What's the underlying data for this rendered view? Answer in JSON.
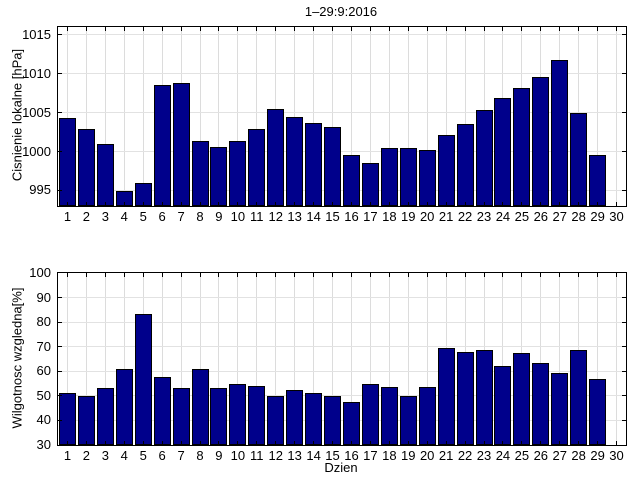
{
  "figure_title": "1–29:9:2016",
  "colors": {
    "bar": "#00008B",
    "bar_edge": "#000000",
    "grid": "#dcdcdc",
    "axis": "#000000",
    "background": "#ffffff"
  },
  "chart_data": [
    {
      "type": "bar",
      "title": "1–29:9:2016",
      "xlabel": "",
      "ylabel": "Cisnienie lokalne [hPa]",
      "categories": [
        1,
        2,
        3,
        4,
        5,
        6,
        7,
        8,
        9,
        10,
        11,
        12,
        13,
        14,
        15,
        16,
        17,
        18,
        19,
        20,
        21,
        22,
        23,
        24,
        25,
        26,
        27,
        28,
        29
      ],
      "values": [
        1004.3,
        1002.9,
        1001.0,
        994.9,
        995.9,
        1008.6,
        1008.8,
        1001.4,
        1000.6,
        1001.4,
        1002.9,
        1005.4,
        1004.4,
        1003.7,
        1003.1,
        999.6,
        998.5,
        1000.5,
        1000.4,
        1000.2,
        1002.1,
        1003.5,
        1005.3,
        1006.9,
        1008.2,
        1009.6,
        1011.7,
        1005.0,
        999.5
      ],
      "ylim": [
        993,
        1016
      ],
      "yticks": [
        995,
        1000,
        1005,
        1010,
        1015
      ],
      "xlim": [
        0.5,
        30.5
      ],
      "xticks": [
        1,
        2,
        3,
        4,
        5,
        6,
        7,
        8,
        9,
        10,
        11,
        12,
        13,
        14,
        15,
        16,
        17,
        18,
        19,
        20,
        21,
        22,
        23,
        24,
        25,
        26,
        27,
        28,
        29,
        30
      ],
      "grid": true,
      "legend": null
    },
    {
      "type": "bar",
      "title": "",
      "xlabel": "Dzien",
      "ylabel": "Wilgotnosc wzgledna[%]",
      "categories": [
        1,
        2,
        3,
        4,
        5,
        6,
        7,
        8,
        9,
        10,
        11,
        12,
        13,
        14,
        15,
        16,
        17,
        18,
        19,
        20,
        21,
        22,
        23,
        24,
        25,
        26,
        27,
        28,
        29
      ],
      "values": [
        51,
        50,
        53,
        61,
        83.5,
        57.5,
        53,
        61,
        53,
        55,
        54,
        50,
        52.5,
        51,
        50,
        47.5,
        55,
        53.5,
        50,
        53.5,
        69.5,
        68,
        68.5,
        62,
        67.5,
        63.5,
        59.5,
        68.5,
        57
      ],
      "ylim": [
        30,
        100
      ],
      "yticks": [
        30,
        40,
        50,
        60,
        70,
        80,
        90,
        100
      ],
      "xlim": [
        0.5,
        30.5
      ],
      "xticks": [
        1,
        2,
        3,
        4,
        5,
        6,
        7,
        8,
        9,
        10,
        11,
        12,
        13,
        14,
        15,
        16,
        17,
        18,
        19,
        20,
        21,
        22,
        23,
        24,
        25,
        26,
        27,
        28,
        29,
        30
      ],
      "grid": true,
      "legend": null
    }
  ]
}
